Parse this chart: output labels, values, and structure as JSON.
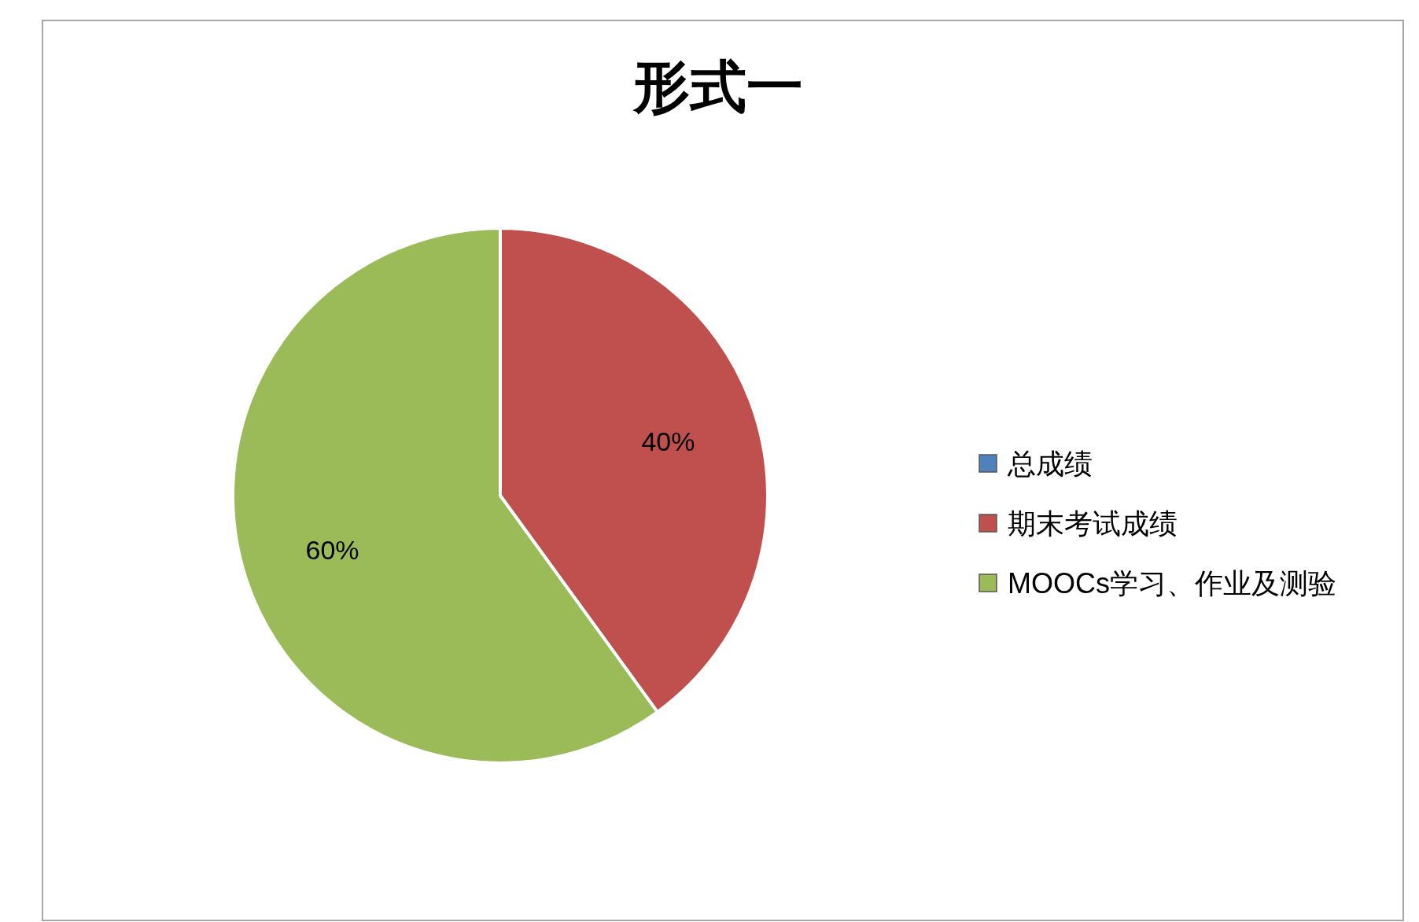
{
  "chart_data": {
    "type": "pie",
    "title": "形式一",
    "categories": [
      "总成绩",
      "期末考试成绩",
      "MOOCs学习、作业及测验"
    ],
    "values": [
      0,
      40,
      60
    ],
    "colors": [
      "#4f81bd",
      "#c0504d",
      "#9bbb59"
    ],
    "value_labels": [
      null,
      "40%",
      "60%"
    ],
    "legend": "right"
  }
}
